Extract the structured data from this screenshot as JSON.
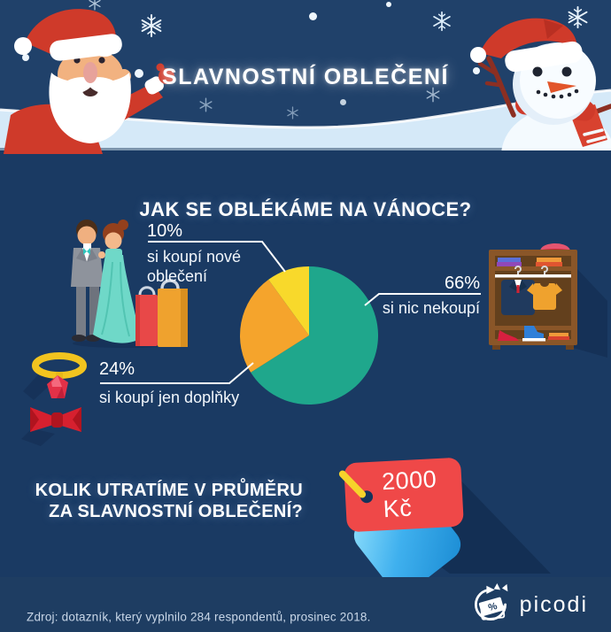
{
  "header": {
    "title": "SLAVNOSTNÍ OBLEČENÍ"
  },
  "main": {
    "question": "JAK SE OBLÉKÁME NA VÁNOCE?",
    "spend_question_line1": "KOLIK UTRATÍME V PRŮMĚRU",
    "spend_question_line2": "ZA SLAVNOSTNÍ OBLEČENÍ?",
    "price_tag": "2000 Kč"
  },
  "chart_data": {
    "type": "pie",
    "title": "JAK SE OBLÉKÁME NA VÁNOCE?",
    "direction": "clockwise",
    "start_angle_deg": 0,
    "legend_position": "callout-labels",
    "slices": [
      {
        "label": "si nic nekoupí",
        "pct": "66%",
        "value": 66,
        "color": "#1fa78c"
      },
      {
        "label": "si koupí jen doplňky",
        "pct": "24%",
        "value": 24,
        "color": "#f5a42c"
      },
      {
        "label": "si koupí nové oblečení",
        "pct": "10%",
        "value": 10,
        "color": "#f8d92b"
      }
    ]
  },
  "footer": {
    "source": "Zdroj: dotazník, který vyplnilo 284 respondentů, prosinec 2018.",
    "brand": "picodi",
    "logo_percent": "%"
  },
  "colors": {
    "header_sky": "#20416a",
    "body_bg": "#1a3a63",
    "footer_bg": "#1e3d62",
    "snow": "#d5e9f8",
    "tag_red": "#ef4848",
    "tag_blue": "#3fb0ee",
    "pin_yellow": "#f6d32b"
  }
}
